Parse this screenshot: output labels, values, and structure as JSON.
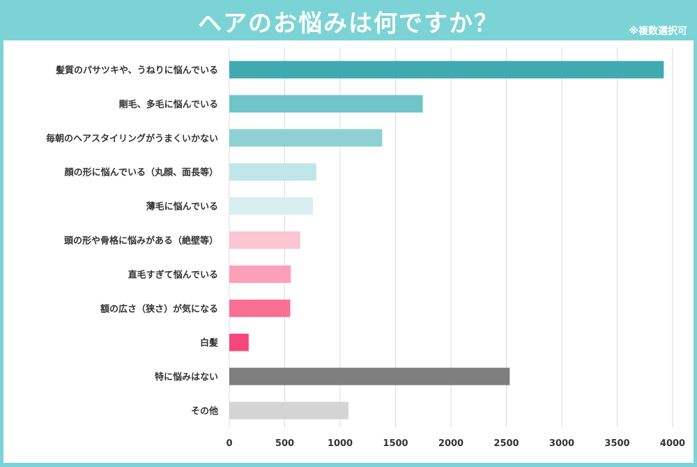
{
  "header": {
    "title": "ヘアのお悩みは何ですか？",
    "note": "※複数選択可"
  },
  "chart_data": {
    "type": "bar",
    "orientation": "horizontal",
    "title": "ヘアのお悩みは何ですか？",
    "categories": [
      "髪質のパサツキや、うねりに悩んでいる",
      "剛毛、多毛に悩んでいる",
      "毎朝のヘアスタイリングがうまくいかない",
      "顔の形に悩んでいる（丸顔、面長等）",
      "薄毛に悩んでいる",
      "頭の形や骨格に悩みがある（絶壁等）",
      "直毛すぎて悩んでいる",
      "額の広さ（狭さ）が気になる",
      "白髪",
      "特に悩みはない",
      "その他"
    ],
    "values": [
      3920,
      1745,
      1380,
      785,
      755,
      640,
      555,
      550,
      175,
      2530,
      1075
    ],
    "colors": [
      "#3faab0",
      "#6ec4c8",
      "#8dd1d3",
      "#bfe6e8",
      "#d7eff1",
      "#fcc5d3",
      "#fc9fb8",
      "#fa6f94",
      "#f8467c",
      "#7e7e7e",
      "#d4d4d4"
    ],
    "xlim": [
      0,
      4000
    ],
    "ticks": [
      0,
      500,
      1000,
      1500,
      2000,
      2500,
      3000,
      3500,
      4000
    ],
    "grid": true
  }
}
